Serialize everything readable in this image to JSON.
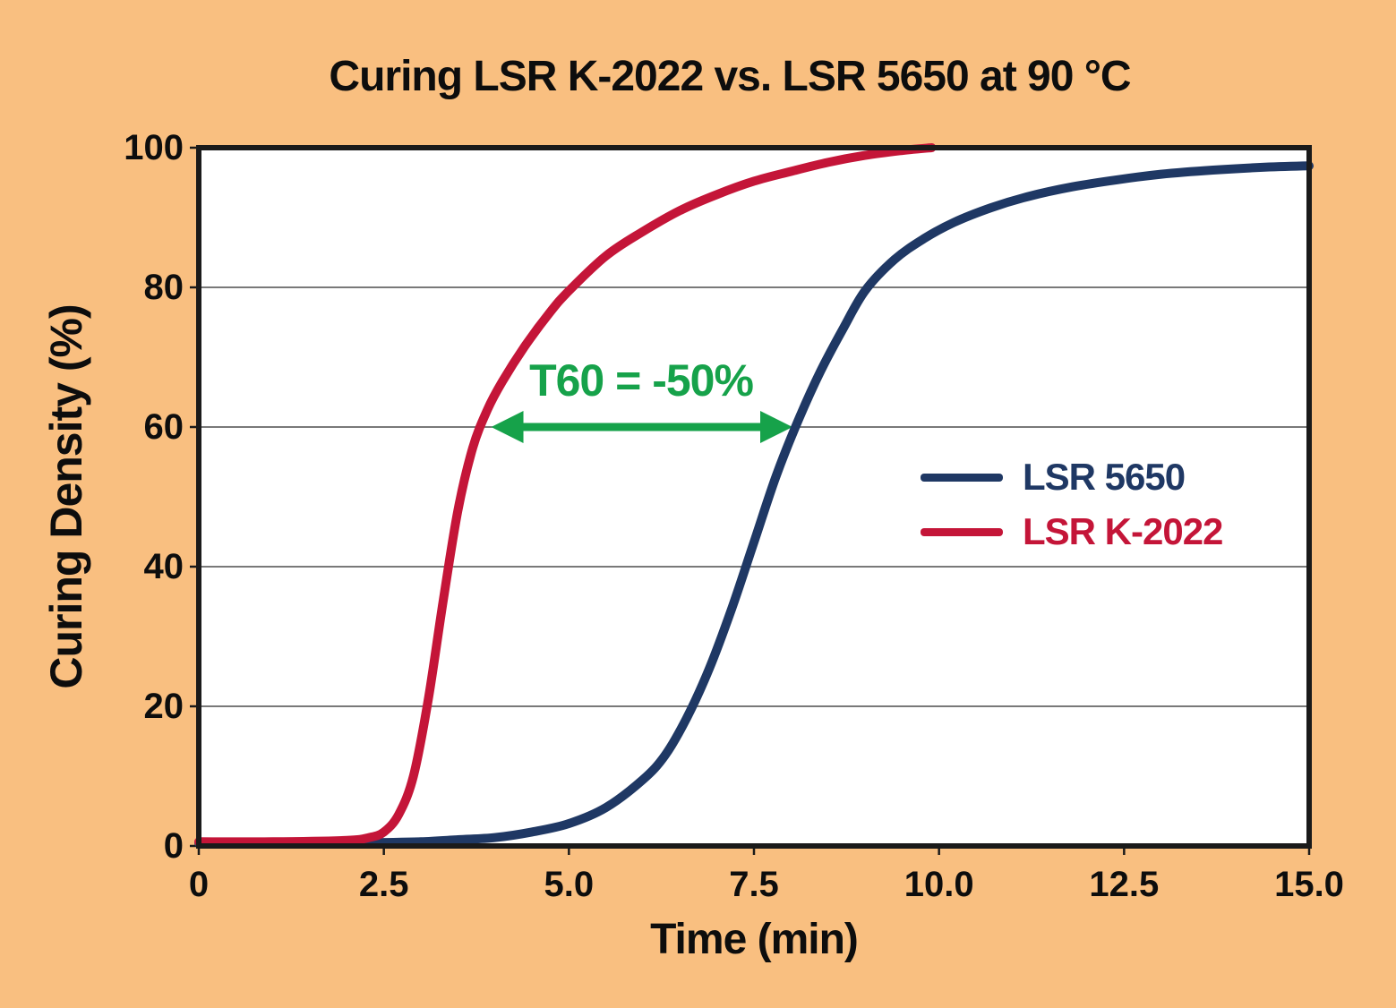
{
  "page": {
    "background_color": "#F9BF80",
    "plot_background_color": "#FFFFFF",
    "frame_color": "#1A1A1A",
    "gridline_color": "#4D4D4D"
  },
  "chart_data": {
    "type": "line",
    "title": "Curing LSR K-2022 vs. LSR 5650 at 90 °C",
    "xlabel": "Time (min)",
    "ylabel": "Curing Density (%)",
    "xlim": [
      0,
      15
    ],
    "ylim": [
      0,
      100
    ],
    "grid": "horizontal-only",
    "xticks": {
      "values": [
        0,
        2.5,
        5,
        7.5,
        10,
        12.5,
        15
      ],
      "labels": [
        "0",
        "2.5",
        "5.0",
        "7.5",
        "10.0",
        "12.5",
        "15.0"
      ]
    },
    "yticks": {
      "values": [
        0,
        20,
        40,
        60,
        80,
        100
      ],
      "labels": [
        "0",
        "20",
        "40",
        "60",
        "80",
        "100"
      ]
    },
    "gridlines_y": [
      20,
      40,
      60,
      80
    ],
    "legend": {
      "position": "right-center-inside",
      "entries": [
        {
          "label": "LSR 5650",
          "color": "#1F3864"
        },
        {
          "label": "LSR K-2022",
          "color": "#C41538"
        }
      ]
    },
    "annotation": {
      "text": "T60 = -50%",
      "color": "#16A24A",
      "arrow": {
        "x1": 3.95,
        "x2": 8.02,
        "y": 60,
        "style": "double-headed"
      }
    },
    "series": [
      {
        "name": "LSR 5650",
        "color": "#1F3864",
        "points": [
          [
            0,
            0.4
          ],
          [
            1,
            0.4
          ],
          [
            2,
            0.4
          ],
          [
            2.5,
            0.5
          ],
          [
            3,
            0.6
          ],
          [
            3.5,
            0.9
          ],
          [
            4,
            1.2
          ],
          [
            4.5,
            2
          ],
          [
            5,
            3.2
          ],
          [
            5.5,
            5.5
          ],
          [
            6,
            9.5
          ],
          [
            6.3,
            13
          ],
          [
            6.6,
            18.5
          ],
          [
            6.9,
            25.5
          ],
          [
            7.2,
            34
          ],
          [
            7.5,
            43.5
          ],
          [
            7.8,
            53
          ],
          [
            8.1,
            61
          ],
          [
            8.4,
            68
          ],
          [
            8.7,
            74
          ],
          [
            9,
            79.5
          ],
          [
            9.4,
            84
          ],
          [
            9.8,
            87
          ],
          [
            10.2,
            89.3
          ],
          [
            10.7,
            91.4
          ],
          [
            11.2,
            93
          ],
          [
            11.8,
            94.4
          ],
          [
            12.4,
            95.4
          ],
          [
            13,
            96.2
          ],
          [
            13.7,
            96.8
          ],
          [
            14.4,
            97.2
          ],
          [
            15,
            97.4
          ]
        ]
      },
      {
        "name": "LSR K-2022",
        "color": "#C41538",
        "points": [
          [
            0,
            0.6
          ],
          [
            1,
            0.6
          ],
          [
            2,
            0.8
          ],
          [
            2.3,
            1.2
          ],
          [
            2.5,
            2
          ],
          [
            2.7,
            4.5
          ],
          [
            2.9,
            10
          ],
          [
            3.1,
            21
          ],
          [
            3.3,
            35
          ],
          [
            3.5,
            48
          ],
          [
            3.7,
            57
          ],
          [
            3.9,
            62.5
          ],
          [
            4.1,
            66.5
          ],
          [
            4.4,
            71.5
          ],
          [
            4.75,
            76.5
          ],
          [
            5,
            79.5
          ],
          [
            5.5,
            84.5
          ],
          [
            6,
            88
          ],
          [
            6.5,
            91
          ],
          [
            7,
            93.3
          ],
          [
            7.5,
            95.2
          ],
          [
            8,
            96.6
          ],
          [
            8.5,
            97.9
          ],
          [
            9,
            98.9
          ],
          [
            9.5,
            99.6
          ],
          [
            9.9,
            100
          ]
        ]
      }
    ]
  }
}
